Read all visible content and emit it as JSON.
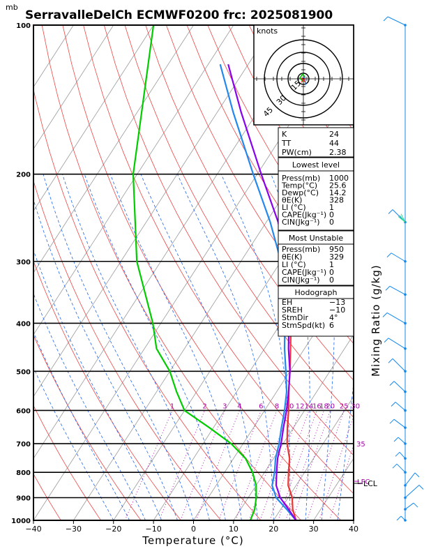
{
  "header": {
    "title": "SerravalleDelCh ECMWF0200 frc: 2025081900",
    "unit_mb": "mb"
  },
  "chart_data": {
    "type": "line",
    "xlabel": "Temperature (°C)",
    "ylabel": "Mixing Ratio (g/kg)",
    "xlim": [
      -40,
      40
    ],
    "ylim": [
      1000,
      100
    ],
    "x_ticks": [
      "−40",
      "−30",
      "−20",
      "−10",
      "0",
      "10",
      "20",
      "30",
      "40"
    ],
    "pressure_ticks": [
      "100",
      "200",
      "300",
      "400",
      "500",
      "600",
      "700",
      "800",
      "900",
      "1000"
    ],
    "mixing_ratio_labels": [
      "1",
      "2",
      "3",
      "4",
      "6",
      "8",
      "10",
      "12",
      "14",
      "16",
      "18",
      "20",
      "25",
      "30"
    ],
    "mixing_ratio_label_35": "35",
    "lcl_label": "LCL",
    "lfc_label": "LFC",
    "series": [
      {
        "name": "",
        "color": "#ee3333",
        "points": [
          [
            1000,
            25.6
          ],
          [
            950,
            23
          ],
          [
            900,
            21
          ],
          [
            850,
            18
          ],
          [
            800,
            16
          ],
          [
            750,
            14
          ],
          [
            700,
            11
          ],
          [
            650,
            8.5
          ],
          [
            600,
            6
          ],
          [
            550,
            3
          ],
          [
            500,
            0
          ],
          [
            450,
            -3.5
          ],
          [
            400,
            -7.5
          ],
          [
            350,
            -12.5
          ],
          [
            300,
            -18
          ],
          [
            250,
            -25
          ],
          [
            200,
            -20
          ],
          [
            150,
            -13
          ],
          [
            100,
            -4
          ]
        ]
      },
      {
        "name": "",
        "color": "#00cc00",
        "points": [
          [
            1000,
            14.2
          ],
          [
            950,
            13.5
          ],
          [
            900,
            12
          ],
          [
            850,
            10
          ],
          [
            800,
            7
          ],
          [
            750,
            3
          ],
          [
            700,
            -3
          ],
          [
            650,
            -11
          ],
          [
            600,
            -20
          ],
          [
            550,
            -25
          ],
          [
            500,
            -30
          ],
          [
            450,
            -37
          ],
          [
            400,
            -42
          ],
          [
            300,
            -56
          ],
          [
            200,
            -71
          ],
          [
            100,
            -90
          ]
        ]
      },
      {
        "name": "",
        "color": "#2288ee",
        "points": [
          [
            1000,
            25.6
          ],
          [
            950,
            21.5
          ],
          [
            900,
            17
          ],
          [
            850,
            14
          ],
          [
            800,
            12.5
          ],
          [
            750,
            10.5
          ],
          [
            700,
            9
          ],
          [
            650,
            7
          ],
          [
            600,
            5
          ],
          [
            550,
            2.5
          ],
          [
            500,
            -1
          ],
          [
            450,
            -5
          ],
          [
            400,
            -9
          ],
          [
            350,
            -14
          ],
          [
            300,
            -20
          ],
          [
            250,
            -29
          ],
          [
            200,
            -41
          ],
          [
            150,
            -56
          ],
          [
            120,
            -67
          ]
        ]
      },
      {
        "name": "",
        "color": "#8800ee",
        "points": [
          [
            1000,
            25.6
          ],
          [
            950,
            22
          ],
          [
            900,
            18
          ],
          [
            850,
            15
          ],
          [
            800,
            13
          ],
          [
            750,
            11
          ],
          [
            700,
            9.5
          ],
          [
            650,
            7.5
          ],
          [
            600,
            5.5
          ],
          [
            550,
            3
          ],
          [
            500,
            0
          ],
          [
            450,
            -4
          ],
          [
            400,
            -8
          ],
          [
            350,
            -13
          ],
          [
            300,
            -19
          ],
          [
            250,
            -27
          ],
          [
            200,
            -39
          ],
          [
            150,
            -54
          ],
          [
            120,
            -65
          ]
        ]
      }
    ]
  },
  "hodograph": {
    "label": "knots",
    "ring_labels": [
      "15",
      "30",
      "45"
    ]
  },
  "indices": [
    {
      "label": "K",
      "value": "24"
    },
    {
      "label": "TT",
      "value": "44"
    },
    {
      "label": "PW(cm)",
      "value": "2.38"
    }
  ],
  "lowest_level": {
    "title": "Lowest level",
    "rows": [
      {
        "label": "Press(mb)",
        "value": "1000"
      },
      {
        "label": "Temp(°C)",
        "value": "25.6"
      },
      {
        "label": "Dewp(°C)",
        "value": "14.2"
      },
      {
        "label": "θE(K)",
        "value": "328"
      },
      {
        "label": "LI (°C)",
        "value": "1"
      },
      {
        "label": "CAPE(Jkg⁻¹)",
        "value": "0"
      },
      {
        "label": "CIN(Jkg⁻¹)",
        "value": "0"
      }
    ]
  },
  "most_unstable": {
    "title": "Most Unstable",
    "rows": [
      {
        "label": "Press(mb)",
        "value": "950"
      },
      {
        "label": "θE(K)",
        "value": "329"
      },
      {
        "label": "LI (°C)",
        "value": "1"
      },
      {
        "label": "CAPE(Jkg⁻¹)",
        "value": "0"
      },
      {
        "label": "CIN(Jkg⁻¹)",
        "value": "0"
      }
    ]
  },
  "hodograph_stats": {
    "title": "Hodograph",
    "rows": [
      {
        "label": "EH",
        "value": "−13"
      },
      {
        "label": "SREH",
        "value": "−10"
      },
      {
        "label": "StmDir",
        "value": "4°"
      },
      {
        "label": "StmSpd(kt)",
        "value": "6"
      }
    ]
  }
}
